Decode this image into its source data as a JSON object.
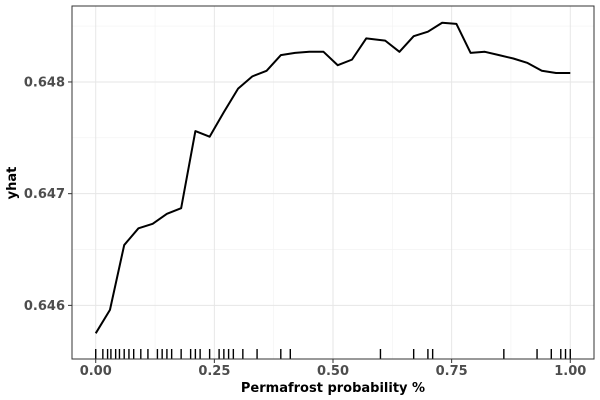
{
  "chart_data": {
    "type": "line",
    "title": "",
    "xlabel": "Permafrost probability %",
    "ylabel": "yhat",
    "xlim": [
      -0.05,
      1.05
    ],
    "ylim": [
      0.64552,
      0.64868
    ],
    "x_ticks": [
      0.0,
      0.25,
      0.5,
      0.75,
      1.0
    ],
    "x_tick_labels": [
      "0.00",
      "0.25",
      "0.50",
      "0.75",
      "1.00"
    ],
    "y_ticks": [
      0.646,
      0.647,
      0.648
    ],
    "y_tick_labels": [
      "0.646",
      "0.647",
      "0.648"
    ],
    "grid": true,
    "line_color": "#000000",
    "series": [
      {
        "x": [
          0.0,
          0.03,
          0.06,
          0.09,
          0.12,
          0.15,
          0.18,
          0.21,
          0.24,
          0.27,
          0.3,
          0.33,
          0.36,
          0.39,
          0.42,
          0.45,
          0.48,
          0.51,
          0.54,
          0.57,
          0.61,
          0.64,
          0.67,
          0.7,
          0.73,
          0.76,
          0.79,
          0.82,
          0.85,
          0.88,
          0.91,
          0.94,
          0.97,
          1.0
        ],
        "y": [
          0.64575,
          0.64596,
          0.64654,
          0.64669,
          0.64673,
          0.64682,
          0.64687,
          0.64756,
          0.64751,
          0.64773,
          0.64794,
          0.64805,
          0.6481,
          0.64824,
          0.64826,
          0.64827,
          0.64827,
          0.64815,
          0.6482,
          0.64839,
          0.64837,
          0.64827,
          0.64841,
          0.64845,
          0.64853,
          0.64852,
          0.64826,
          0.64827,
          0.64824,
          0.64821,
          0.64817,
          0.6481,
          0.64808,
          0.64808
        ]
      }
    ],
    "rug_x": [
      0.0,
      0.015,
      0.025,
      0.032,
      0.042,
      0.05,
      0.06,
      0.07,
      0.08,
      0.095,
      0.11,
      0.13,
      0.14,
      0.15,
      0.16,
      0.18,
      0.2,
      0.21,
      0.22,
      0.24,
      0.26,
      0.27,
      0.28,
      0.29,
      0.31,
      0.34,
      0.39,
      0.41,
      0.6,
      0.67,
      0.7,
      0.71,
      0.86,
      0.93,
      0.96,
      0.98,
      0.99,
      1.0
    ]
  }
}
